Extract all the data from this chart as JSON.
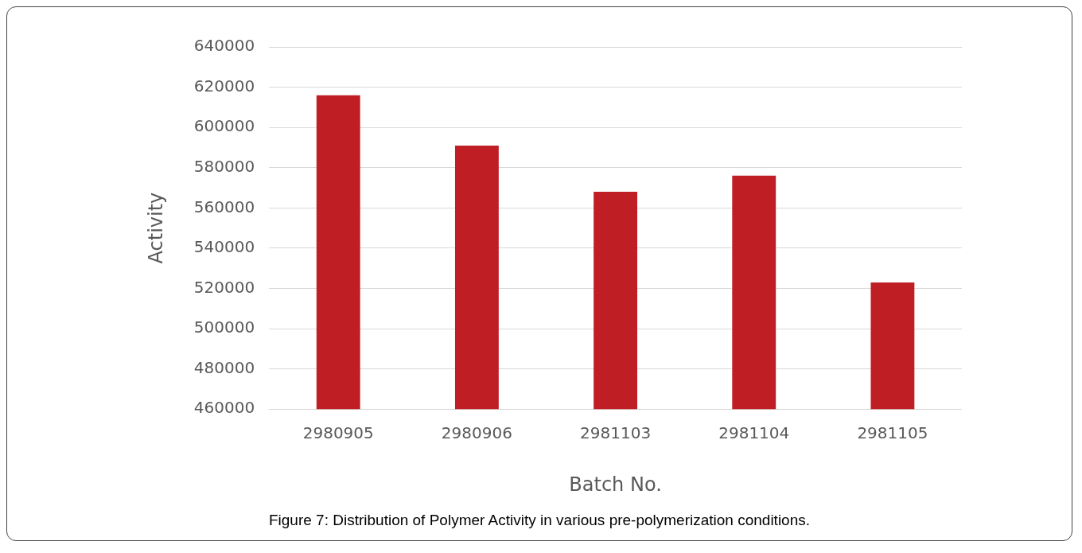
{
  "chart_data": {
    "type": "bar",
    "xlabel": "Batch No.",
    "ylabel": "Activity",
    "categories": [
      "2980905",
      "2980906",
      "2981103",
      "2981104",
      "2981105"
    ],
    "values": [
      616000,
      591000,
      568000,
      576000,
      523000
    ],
    "color": "#be1e24",
    "ylim": [
      460000,
      640000
    ],
    "yticks": [
      460000,
      480000,
      500000,
      520000,
      540000,
      560000,
      580000,
      600000,
      620000,
      640000
    ],
    "grid": "y",
    "annotations": [
      "Figure 7: Distribution of Polymer Activity in various pre-polymerization conditions."
    ]
  }
}
